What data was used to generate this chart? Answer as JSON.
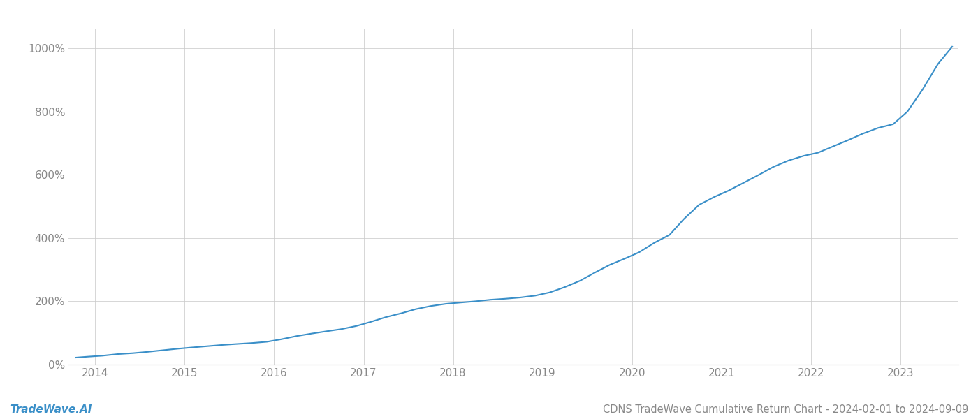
{
  "title": "CDNS TradeWave Cumulative Return Chart - 2024-02-01 to 2024-09-09",
  "watermark": "TradeWave.AI",
  "line_color": "#3a8fc8",
  "background_color": "#ffffff",
  "grid_color": "#cccccc",
  "x_years": [
    2014,
    2015,
    2016,
    2017,
    2018,
    2019,
    2020,
    2021,
    2022,
    2023
  ],
  "x_values": [
    2013.78,
    2013.92,
    2014.08,
    2014.25,
    2014.42,
    2014.58,
    2014.75,
    2014.92,
    2015.08,
    2015.25,
    2015.42,
    2015.58,
    2015.75,
    2015.92,
    2016.08,
    2016.25,
    2016.42,
    2016.58,
    2016.75,
    2016.92,
    2017.08,
    2017.25,
    2017.42,
    2017.58,
    2017.75,
    2017.92,
    2018.08,
    2018.25,
    2018.42,
    2018.58,
    2018.75,
    2018.92,
    2019.08,
    2019.25,
    2019.42,
    2019.58,
    2019.75,
    2019.92,
    2020.08,
    2020.25,
    2020.42,
    2020.58,
    2020.75,
    2020.92,
    2021.08,
    2021.25,
    2021.42,
    2021.58,
    2021.75,
    2021.92,
    2022.08,
    2022.25,
    2022.42,
    2022.58,
    2022.75,
    2022.92,
    2023.08,
    2023.25,
    2023.42,
    2023.58
  ],
  "y_values": [
    22,
    25,
    28,
    33,
    36,
    40,
    45,
    50,
    54,
    58,
    62,
    65,
    68,
    72,
    80,
    90,
    98,
    105,
    112,
    122,
    135,
    150,
    162,
    175,
    185,
    192,
    196,
    200,
    205,
    208,
    212,
    218,
    228,
    245,
    265,
    290,
    315,
    335,
    355,
    385,
    410,
    460,
    505,
    530,
    550,
    575,
    600,
    625,
    645,
    660,
    670,
    690,
    710,
    730,
    748,
    760,
    800,
    870,
    950,
    1005
  ],
  "ylim": [
    0,
    1060
  ],
  "xlim": [
    2013.7,
    2023.65
  ],
  "yticks": [
    0,
    200,
    400,
    600,
    800,
    1000
  ],
  "ytick_labels": [
    "0%",
    "200%",
    "400%",
    "600%",
    "800%",
    "1000%"
  ],
  "line_width": 1.5,
  "title_fontsize": 10.5,
  "tick_fontsize": 11,
  "watermark_fontsize": 11,
  "grid_alpha": 0.8,
  "watermark_color": "#3a8fc8"
}
